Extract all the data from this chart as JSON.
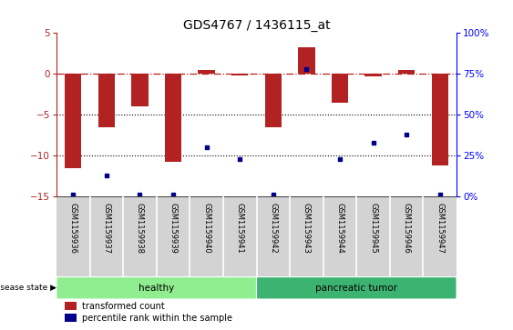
{
  "title": "GDS4767 / 1436115_at",
  "samples": [
    "GSM1159936",
    "GSM1159937",
    "GSM1159938",
    "GSM1159939",
    "GSM1159940",
    "GSM1159941",
    "GSM1159942",
    "GSM1159943",
    "GSM1159944",
    "GSM1159945",
    "GSM1159946",
    "GSM1159947"
  ],
  "red_values": [
    -11.5,
    -6.5,
    -4.0,
    -10.8,
    0.5,
    -0.2,
    -6.5,
    3.2,
    -3.5,
    -0.3,
    0.5,
    -11.2
  ],
  "blue_values": [
    1,
    13,
    1,
    1,
    30,
    23,
    1,
    78,
    23,
    33,
    38,
    1
  ],
  "ylim_left": [
    -15,
    5
  ],
  "ylim_right": [
    0,
    100
  ],
  "yticks_left": [
    -15,
    -10,
    -5,
    0,
    5
  ],
  "yticks_right": [
    0,
    25,
    50,
    75,
    100
  ],
  "red_color": "#b22222",
  "blue_color": "#00008b",
  "dotted_line_color": "#000000",
  "healthy_group": [
    0,
    1,
    2,
    3,
    4,
    5
  ],
  "tumor_group": [
    6,
    7,
    8,
    9,
    10,
    11
  ],
  "healthy_label": "healthy",
  "tumor_label": "pancreatic tumor",
  "healthy_color": "#90ee90",
  "tumor_color": "#3cb371",
  "disease_state_label": "disease state",
  "legend_red_label": "transformed count",
  "legend_blue_label": "percentile rank within the sample",
  "bar_width": 0.5,
  "tick_label_fontsize": 6.0,
  "title_fontsize": 10,
  "plot_bg_color": "#ffffff",
  "label_bg_color": "#d3d3d3"
}
